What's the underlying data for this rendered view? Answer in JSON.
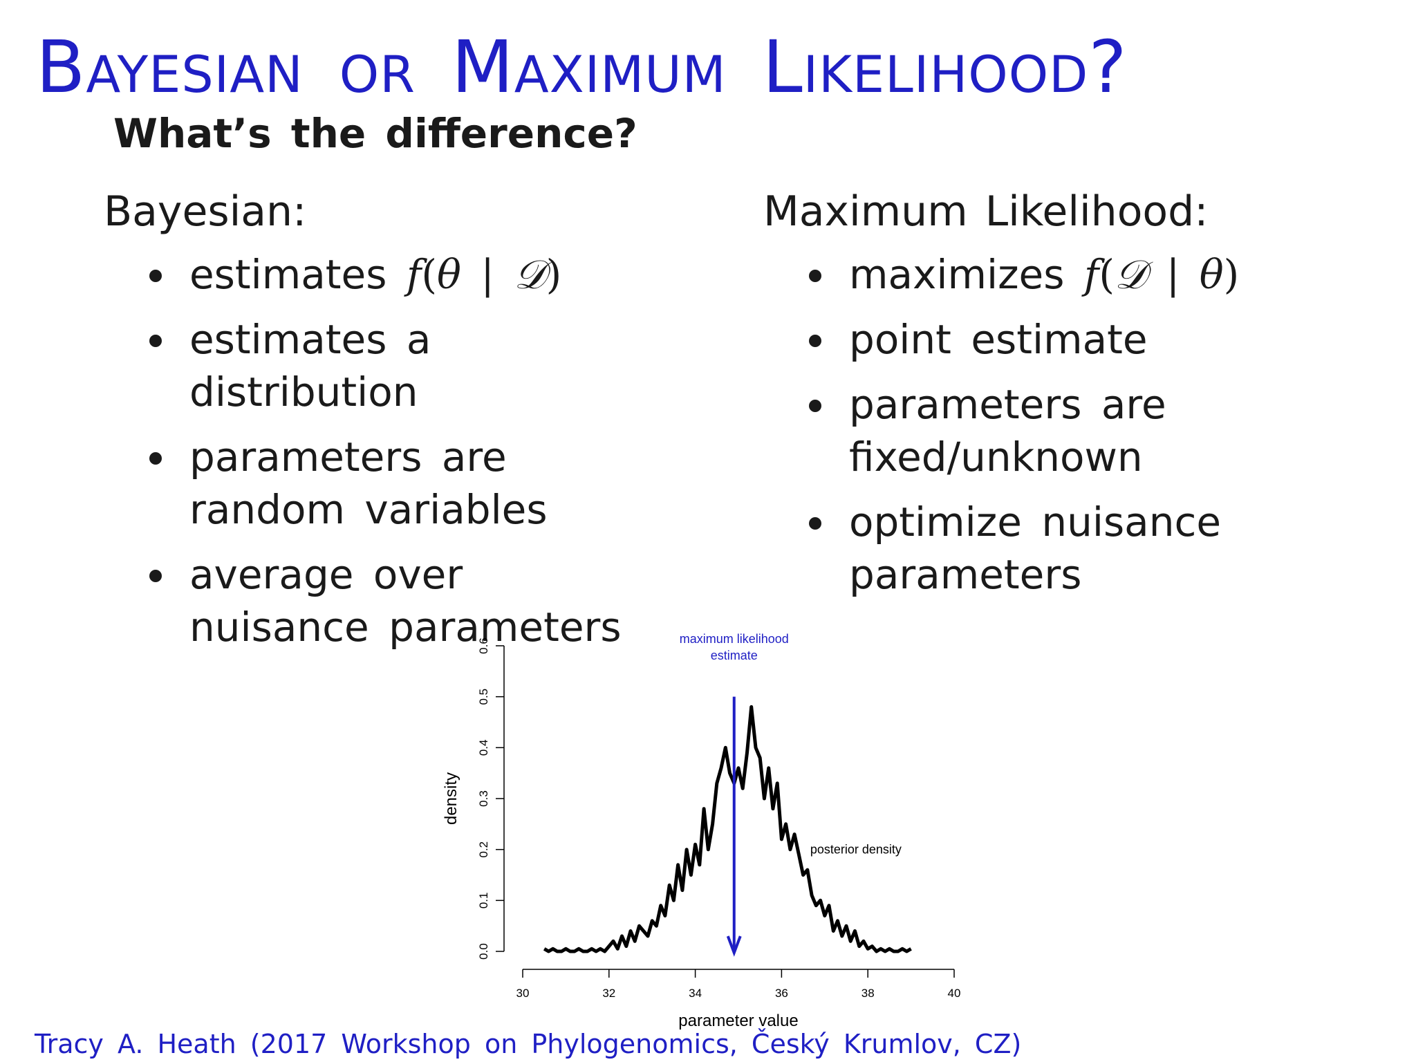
{
  "slide": {
    "title": "Bayesian or Maximum Likelihood?",
    "subtitle": "What’s the difference?",
    "footer": "Tracy A. Heath (2017 Workshop on Phylogenomics, Český Krumlov, CZ)"
  },
  "left_column": {
    "heading": "Bayesian:",
    "bullets": [
      {
        "text": "estimates ",
        "math": {
          "fn": "f",
          "open": "(",
          "a": "θ",
          "sep": " | ",
          "b": "𝒟",
          "close": ")"
        }
      },
      {
        "text": "estimates a distribution"
      },
      {
        "text": "parameters are random variables"
      },
      {
        "text": "average over nuisance parameters"
      }
    ]
  },
  "right_column": {
    "heading": "Maximum Likelihood:",
    "bullets": [
      {
        "text": "maximizes ",
        "math": {
          "fn": "f",
          "open": "(",
          "a": "𝒟",
          "sep": " | ",
          "b": "θ",
          "close": ")"
        }
      },
      {
        "text": "point estimate"
      },
      {
        "text": "parameters are fixed/unknown"
      },
      {
        "text": "optimize nuisance parameters"
      }
    ]
  },
  "colors": {
    "title": "#1f1fc4",
    "arrow": "#1f1fc4",
    "curve": "#000000"
  },
  "chart_data": {
    "type": "line",
    "xlabel": "parameter value",
    "ylabel": "density",
    "xlim": [
      30,
      40
    ],
    "ylim": [
      0,
      0.6
    ],
    "xticks": [
      30,
      32,
      34,
      36,
      38,
      40
    ],
    "yticks": [
      0.0,
      0.1,
      0.2,
      0.3,
      0.4,
      0.5,
      0.6
    ],
    "ytick_labels": [
      "0.0",
      "0.1",
      "0.2",
      "0.3",
      "0.4",
      "0.5",
      "0.6"
    ],
    "grid": false,
    "series": [
      {
        "x": [
          30.5,
          30.6,
          30.7,
          30.8,
          30.9,
          31.0,
          31.1,
          31.2,
          31.3,
          31.4,
          31.5,
          31.6,
          31.7,
          31.8,
          31.9,
          32.0,
          32.1,
          32.2,
          32.3,
          32.4,
          32.5,
          32.6,
          32.7,
          32.8,
          32.9,
          33.0,
          33.1,
          33.2,
          33.3,
          33.4,
          33.5,
          33.6,
          33.7,
          33.8,
          33.9,
          34.0,
          34.1,
          34.2,
          34.3,
          34.4,
          34.5,
          34.6,
          34.7,
          34.8,
          34.9,
          35.0,
          35.1,
          35.2,
          35.3,
          35.4,
          35.5,
          35.6,
          35.7,
          35.8,
          35.9,
          36.0,
          36.1,
          36.2,
          36.3,
          36.4,
          36.5,
          36.6,
          36.7,
          36.8,
          36.9,
          37.0,
          37.1,
          37.2,
          37.3,
          37.4,
          37.5,
          37.6,
          37.7,
          37.8,
          37.9,
          38.0,
          38.1,
          38.2,
          38.3,
          38.4,
          38.5,
          38.6,
          38.7,
          38.8,
          38.9,
          39.0
        ],
        "values": [
          0.005,
          0.0,
          0.005,
          0.0,
          0.0,
          0.005,
          0.0,
          0.0,
          0.005,
          0.0,
          0.0,
          0.005,
          0.0,
          0.005,
          0.0,
          0.01,
          0.02,
          0.005,
          0.03,
          0.01,
          0.04,
          0.02,
          0.05,
          0.04,
          0.03,
          0.06,
          0.05,
          0.09,
          0.07,
          0.13,
          0.1,
          0.17,
          0.12,
          0.2,
          0.15,
          0.21,
          0.17,
          0.28,
          0.2,
          0.25,
          0.33,
          0.36,
          0.4,
          0.35,
          0.33,
          0.36,
          0.32,
          0.39,
          0.48,
          0.4,
          0.38,
          0.3,
          0.36,
          0.28,
          0.33,
          0.22,
          0.25,
          0.2,
          0.23,
          0.19,
          0.15,
          0.16,
          0.11,
          0.09,
          0.1,
          0.07,
          0.09,
          0.04,
          0.06,
          0.03,
          0.05,
          0.02,
          0.04,
          0.01,
          0.02,
          0.005,
          0.01,
          0.0,
          0.005,
          0.0,
          0.005,
          0.0,
          0.0,
          0.005,
          0.0,
          0.005
        ]
      }
    ],
    "annotations": [
      {
        "text": "maximum likelihood estimate",
        "lines": [
          "maximum likelihood",
          "estimate"
        ],
        "x": 34.9,
        "arrow_to_y": 0.0,
        "arrow_from_y": 0.5
      },
      {
        "text": "posterior density",
        "x": 36.6,
        "y": 0.2
      }
    ]
  }
}
